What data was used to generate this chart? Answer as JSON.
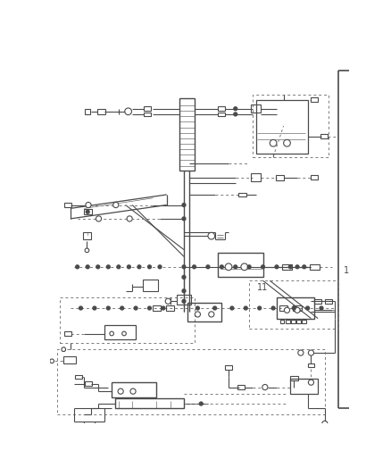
{
  "background_color": "#ffffff",
  "lc": "#4a4a4a",
  "dc": "#7a7a7a",
  "fig_width": 4.38,
  "fig_height": 5.33,
  "dpi": 100
}
